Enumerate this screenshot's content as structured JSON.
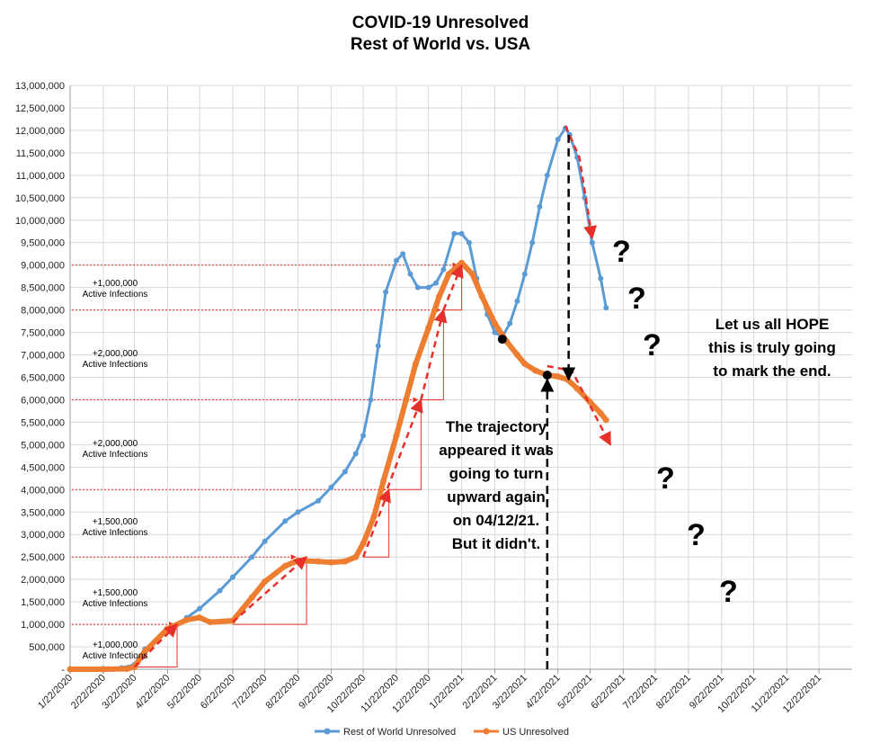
{
  "chart_data": {
    "type": "line",
    "title": [
      "COVID-19 Unresolved",
      "Rest of World vs. USA"
    ],
    "ylim": [
      0,
      13000000
    ],
    "y_tick_labels": [
      "-",
      "500,000",
      "1,000,000",
      "1,500,000",
      "2,000,000",
      "2,500,000",
      "3,000,000",
      "3,500,000",
      "4,000,000",
      "4,500,000",
      "5,000,000",
      "5,500,000",
      "6,000,000",
      "6,500,000",
      "7,000,000",
      "7,500,000",
      "8,000,000",
      "8,500,000",
      "9,000,000",
      "9,500,000",
      "10,000,000",
      "10,500,000",
      "11,000,000",
      "11,500,000",
      "12,000,000",
      "12,500,000",
      "13,000,000"
    ],
    "x_tick_labels": [
      "1/22/2020",
      "2/22/2020",
      "3/22/2020",
      "4/22/2020",
      "5/22/2020",
      "6/22/2020",
      "7/22/2020",
      "8/22/2020",
      "9/22/2020",
      "10/22/2020",
      "11/22/2020",
      "12/22/2020",
      "1/22/2021",
      "2/22/2021",
      "3/22/2021",
      "4/22/2021",
      "5/22/2021",
      "6/22/2021",
      "7/22/2021",
      "8/22/2021",
      "9/22/2021",
      "10/22/2021",
      "11/22/2021",
      "12/22/2021"
    ],
    "grid": true,
    "legend": "bottom",
    "series": [
      {
        "name": "Rest of World Unresolved",
        "color": "#5B9BD5",
        "points": [
          [
            "2020-01-22",
            0
          ],
          [
            "2020-02-22",
            15000
          ],
          [
            "2020-03-10",
            30000
          ],
          [
            "2020-03-22",
            100000
          ],
          [
            "2020-04-01",
            450000
          ],
          [
            "2020-04-22",
            850000
          ],
          [
            "2020-05-10",
            1150000
          ],
          [
            "2020-05-22",
            1350000
          ],
          [
            "2020-06-10",
            1750000
          ],
          [
            "2020-06-22",
            2050000
          ],
          [
            "2020-07-10",
            2500000
          ],
          [
            "2020-07-22",
            2850000
          ],
          [
            "2020-08-10",
            3300000
          ],
          [
            "2020-08-22",
            3500000
          ],
          [
            "2020-09-10",
            3750000
          ],
          [
            "2020-09-22",
            4050000
          ],
          [
            "2020-10-05",
            4400000
          ],
          [
            "2020-10-15",
            4800000
          ],
          [
            "2020-10-22",
            5200000
          ],
          [
            "2020-10-29",
            6000000
          ],
          [
            "2020-11-05",
            7200000
          ],
          [
            "2020-11-12",
            8400000
          ],
          [
            "2020-11-22",
            9100000
          ],
          [
            "2020-11-28",
            9250000
          ],
          [
            "2020-12-05",
            8800000
          ],
          [
            "2020-12-12",
            8500000
          ],
          [
            "2020-12-22",
            8500000
          ],
          [
            "2020-12-29",
            8600000
          ],
          [
            "2021-01-05",
            8900000
          ],
          [
            "2021-01-15",
            9700000
          ],
          [
            "2021-01-22",
            9700000
          ],
          [
            "2021-01-29",
            9500000
          ],
          [
            "2021-02-05",
            8700000
          ],
          [
            "2021-02-15",
            7900000
          ],
          [
            "2021-02-22",
            7500000
          ],
          [
            "2021-03-01",
            7400000
          ],
          [
            "2021-03-08",
            7700000
          ],
          [
            "2021-03-15",
            8200000
          ],
          [
            "2021-03-22",
            8800000
          ],
          [
            "2021-03-29",
            9500000
          ],
          [
            "2021-04-05",
            10300000
          ],
          [
            "2021-04-12",
            11000000
          ],
          [
            "2021-04-22",
            11800000
          ],
          [
            "2021-04-29",
            12050000
          ],
          [
            "2021-05-03",
            11900000
          ],
          [
            "2021-05-10",
            11400000
          ],
          [
            "2021-05-17",
            10500000
          ],
          [
            "2021-05-24",
            9500000
          ],
          [
            "2021-06-01",
            8700000
          ],
          [
            "2021-06-06",
            8050000
          ]
        ]
      },
      {
        "name": "US Unresolved",
        "color": "#ED7D31",
        "points": [
          [
            "2020-01-22",
            0
          ],
          [
            "2020-02-22",
            0
          ],
          [
            "2020-03-15",
            10000
          ],
          [
            "2020-03-22",
            50000
          ],
          [
            "2020-04-01",
            400000
          ],
          [
            "2020-04-22",
            900000
          ],
          [
            "2020-05-10",
            1100000
          ],
          [
            "2020-05-22",
            1150000
          ],
          [
            "2020-06-01",
            1050000
          ],
          [
            "2020-06-22",
            1080000
          ],
          [
            "2020-07-10",
            1600000
          ],
          [
            "2020-07-22",
            1950000
          ],
          [
            "2020-08-10",
            2300000
          ],
          [
            "2020-08-22",
            2420000
          ],
          [
            "2020-09-10",
            2400000
          ],
          [
            "2020-09-22",
            2380000
          ],
          [
            "2020-10-05",
            2400000
          ],
          [
            "2020-10-15",
            2500000
          ],
          [
            "2020-10-22",
            2800000
          ],
          [
            "2020-11-01",
            3400000
          ],
          [
            "2020-11-10",
            4200000
          ],
          [
            "2020-11-22",
            5200000
          ],
          [
            "2020-12-01",
            6000000
          ],
          [
            "2020-12-10",
            6800000
          ],
          [
            "2020-12-22",
            7600000
          ],
          [
            "2021-01-01",
            8300000
          ],
          [
            "2021-01-10",
            8800000
          ],
          [
            "2021-01-22",
            9050000
          ],
          [
            "2021-02-01",
            8800000
          ],
          [
            "2021-02-10",
            8300000
          ],
          [
            "2021-02-22",
            7700000
          ],
          [
            "2021-03-05",
            7300000
          ],
          [
            "2021-03-15",
            7000000
          ],
          [
            "2021-03-22",
            6800000
          ],
          [
            "2021-04-01",
            6650000
          ],
          [
            "2021-04-12",
            6550000
          ],
          [
            "2021-04-22",
            6520000
          ],
          [
            "2021-05-01",
            6450000
          ],
          [
            "2021-05-10",
            6250000
          ],
          [
            "2021-05-22",
            5950000
          ],
          [
            "2021-06-01",
            5700000
          ],
          [
            "2021-06-06",
            5550000
          ]
        ]
      }
    ],
    "annotations": [
      {
        "text": "+1,000,000",
        "text2": "Active Infections"
      },
      {
        "text": "+1,500,000",
        "text2": "Active Infections"
      },
      {
        "text": "+1,500,000",
        "text2": "Active Infections"
      },
      {
        "text": "+2,000,000",
        "text2": "Active Infections"
      },
      {
        "text": "+2,000,000",
        "text2": "Active Infections"
      },
      {
        "text": "+1,000,000",
        "text2": "Active Infections"
      }
    ],
    "callout_left": [
      "The trajectory",
      "appeared it was",
      "going to turn",
      "upward again",
      "on 04/12/21.",
      "But it didn't."
    ],
    "callout_right": [
      "Let us all HOPE",
      "this is truly going",
      "to mark the end."
    ],
    "question_mark": "?",
    "colors": {
      "rest_of_world": "#5B9BD5",
      "us": "#ED7D31",
      "trend_arrow": "#E8302A",
      "guide_line": "#E8302A"
    }
  }
}
